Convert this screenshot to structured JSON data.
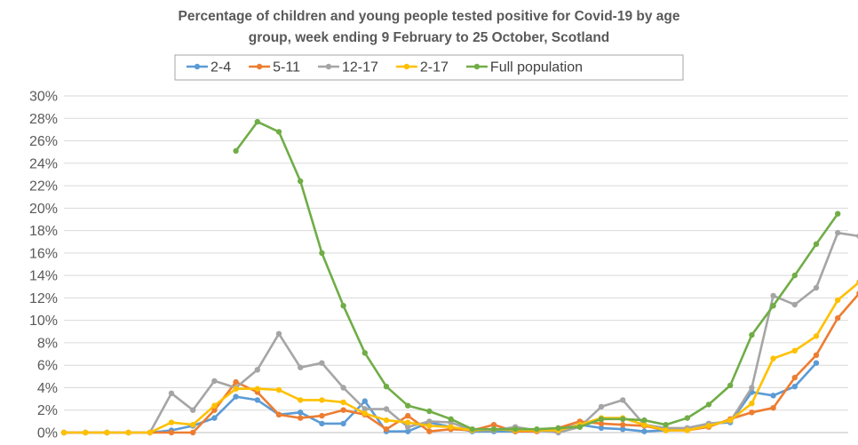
{
  "chart_data": {
    "type": "line",
    "title_lines": [
      "Percentage of children and young people tested positive for Covid-19 by age",
      "group,  week ending 9 February to 25 October, Scotland"
    ],
    "xlabel": "",
    "ylabel": "",
    "ylim": [
      0,
      30
    ],
    "y_ticks": [
      "0%",
      "2%",
      "4%",
      "6%",
      "8%",
      "10%",
      "12%",
      "14%",
      "16%",
      "18%",
      "20%",
      "22%",
      "24%",
      "26%",
      "28%",
      "30%"
    ],
    "grid": true,
    "legend_position": "top",
    "x": [
      1,
      2,
      3,
      4,
      5,
      6,
      7,
      8,
      9,
      10,
      11,
      12,
      13,
      14,
      15,
      16,
      17,
      18,
      19,
      20,
      21,
      22,
      23,
      24,
      25,
      26,
      27,
      28,
      29,
      30,
      31,
      32,
      33,
      34,
      35,
      36,
      37,
      38
    ],
    "series": [
      {
        "name": "2-4",
        "color": "#5B9BD5",
        "values": [
          0,
          0,
          0,
          0,
          0,
          0.2,
          0.6,
          1.3,
          3.2,
          2.9,
          1.6,
          1.8,
          0.8,
          0.8,
          2.8,
          0.1,
          0.1,
          0.9,
          0.5,
          0.1,
          0.1,
          0.1,
          0.2,
          0.3,
          0.7,
          0.4,
          0.3,
          0.1,
          0.2,
          0.4,
          0.8,
          0.9,
          3.6,
          3.3,
          4.1,
          6.2,
          null,
          null
        ]
      },
      {
        "name": "5-11",
        "color": "#ED7D31",
        "values": [
          0,
          0,
          0,
          0,
          0,
          0,
          0,
          2.0,
          4.5,
          3.6,
          1.6,
          1.3,
          1.5,
          2.0,
          1.6,
          0.3,
          1.5,
          0.1,
          0.3,
          0.2,
          0.7,
          0.1,
          0.1,
          0.4,
          1.0,
          0.8,
          0.7,
          0.6,
          0.2,
          0.2,
          0.5,
          1.2,
          1.8,
          2.2,
          4.9,
          6.9,
          10.2,
          12.4
        ]
      },
      {
        "name": "12-17",
        "color": "#A5A5A5",
        "values": [
          0,
          0,
          0,
          0,
          0,
          3.5,
          2.0,
          4.6,
          4.0,
          5.6,
          8.8,
          5.8,
          6.2,
          4.0,
          2.1,
          2.1,
          0.5,
          1.0,
          0.9,
          0.2,
          0.2,
          0.5,
          0.2,
          0.0,
          0.5,
          2.3,
          2.9,
          0.7,
          0.4,
          0.4,
          0.8,
          1.0,
          4.0,
          12.2,
          11.4,
          12.9,
          17.8,
          17.5
        ]
      },
      {
        "name": "2-17",
        "color": "#FFC000",
        "values": [
          0,
          0,
          0,
          0,
          0,
          0.9,
          0.7,
          2.4,
          3.9,
          3.9,
          3.8,
          2.9,
          2.9,
          2.7,
          1.7,
          1.1,
          0.9,
          0.6,
          0.5,
          0.2,
          0.3,
          0.2,
          0.2,
          0.2,
          0.7,
          1.3,
          1.3,
          0.7,
          0.2,
          0.2,
          0.6,
          1.1,
          2.6,
          6.6,
          7.3,
          8.6,
          11.8,
          13.4
        ]
      },
      {
        "name": "Full population",
        "color": "#70AD47",
        "values": [
          null,
          null,
          null,
          null,
          null,
          null,
          null,
          null,
          25.1,
          27.7,
          26.8,
          22.4,
          16.0,
          11.3,
          7.1,
          4.1,
          2.4,
          1.9,
          1.2,
          0.3,
          0.3,
          0.3,
          0.3,
          0.4,
          0.5,
          1.2,
          1.2,
          1.1,
          0.7,
          1.3,
          2.5,
          4.2,
          8.7,
          11.3,
          14.0,
          16.8,
          19.5,
          null
        ]
      }
    ]
  }
}
